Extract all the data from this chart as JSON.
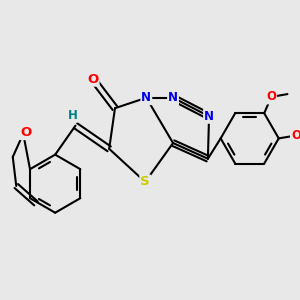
{
  "background_color": "#e8e8e8",
  "bond_color": "#000000",
  "bond_width": 1.5,
  "atom_colors": {
    "O": "#ff0000",
    "N": "#0000ee",
    "S": "#cccc00",
    "H": "#008080",
    "C": "#000000"
  },
  "font_size": 8.5,
  "figsize": [
    3.0,
    3.0
  ],
  "dpi": 100
}
